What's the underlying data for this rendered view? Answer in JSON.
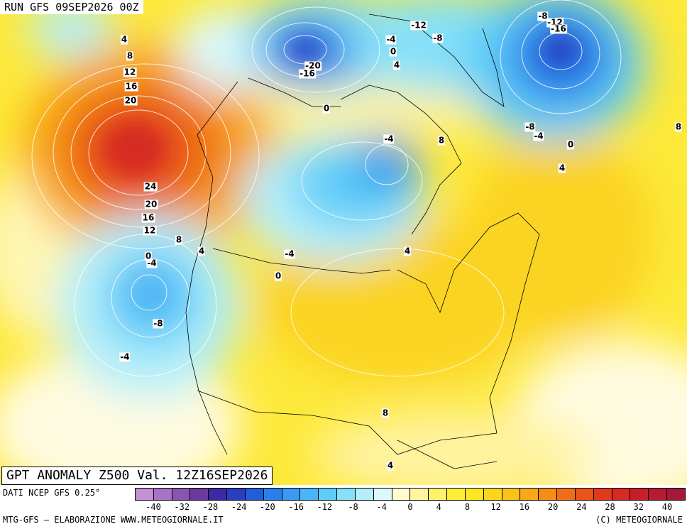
{
  "header": {
    "run_title": "RUN GFS 09SEP2026 00Z"
  },
  "map_title": "GPT ANOMALY Z500 Val. 12Z16SEP2026",
  "footer": {
    "source": "DATI NCEP GFS 0.25°",
    "credit_left": "MTG-GFS — ELABORAZIONE WWW.METEOGIORNALE.IT",
    "credit_right": "(C) METEOGIORNALE"
  },
  "contour_labels": [
    {
      "id": "a1",
      "text": "4"
    },
    {
      "id": "a2",
      "text": "8"
    },
    {
      "id": "a3",
      "text": "12"
    },
    {
      "id": "a4",
      "text": "16"
    },
    {
      "id": "a5",
      "text": "20"
    },
    {
      "id": "a6",
      "text": "24"
    },
    {
      "id": "a7",
      "text": "20"
    },
    {
      "id": "a8",
      "text": "16"
    },
    {
      "id": "a9",
      "text": "12"
    },
    {
      "id": "a10",
      "text": "8"
    },
    {
      "id": "a11",
      "text": "4"
    },
    {
      "id": "a12",
      "text": "0"
    },
    {
      "id": "a13",
      "text": "-4"
    },
    {
      "id": "a14",
      "text": "-8"
    },
    {
      "id": "a15",
      "text": "-4"
    },
    {
      "id": "a16",
      "text": "-20"
    },
    {
      "id": "a17",
      "text": "-16"
    },
    {
      "id": "a18",
      "text": "0"
    },
    {
      "id": "a19",
      "text": "-4"
    },
    {
      "id": "a20",
      "text": "0"
    },
    {
      "id": "a21",
      "text": "4"
    },
    {
      "id": "a22",
      "text": "-12"
    },
    {
      "id": "a23",
      "text": "-8"
    },
    {
      "id": "a24",
      "text": "-8"
    },
    {
      "id": "a25",
      "text": "-12"
    },
    {
      "id": "a26",
      "text": "-16"
    },
    {
      "id": "a27",
      "text": "-8"
    },
    {
      "id": "a28",
      "text": "-4"
    },
    {
      "id": "a29",
      "text": "0"
    },
    {
      "id": "a30",
      "text": "4"
    },
    {
      "id": "a31",
      "text": "8"
    },
    {
      "id": "a32",
      "text": "-4"
    },
    {
      "id": "a33",
      "text": "8"
    },
    {
      "id": "a34",
      "text": "-4"
    },
    {
      "id": "a35",
      "text": "0"
    },
    {
      "id": "a36",
      "text": "4"
    },
    {
      "id": "a37",
      "text": "8"
    },
    {
      "id": "a38",
      "text": "4"
    }
  ],
  "legend": {
    "ticks": [
      "-40",
      "-32",
      "-28",
      "-24",
      "-20",
      "-16",
      "-12",
      "-8",
      "-4",
      "0",
      "4",
      "8",
      "12",
      "16",
      "20",
      "24",
      "28",
      "32",
      "40"
    ],
    "colors": [
      "#c58fd6",
      "#a872c6",
      "#8a55b2",
      "#6b3a9e",
      "#3b2aa3",
      "#2a3fbf",
      "#1f5fd8",
      "#2b7fe8",
      "#3a9af0",
      "#49b4f6",
      "#5fcdf8",
      "#86e0f8",
      "#b4effa",
      "#dcf8fb",
      "#fffcd0",
      "#fff59e",
      "#fff26b",
      "#ffee3a",
      "#fde521",
      "#fcd61e",
      "#fbc21b",
      "#f8a818",
      "#f58d16",
      "#f06f16",
      "#ea5418",
      "#e03a1c",
      "#d62a22",
      "#c91e2a",
      "#b81a32",
      "#a5183a"
    ]
  }
}
